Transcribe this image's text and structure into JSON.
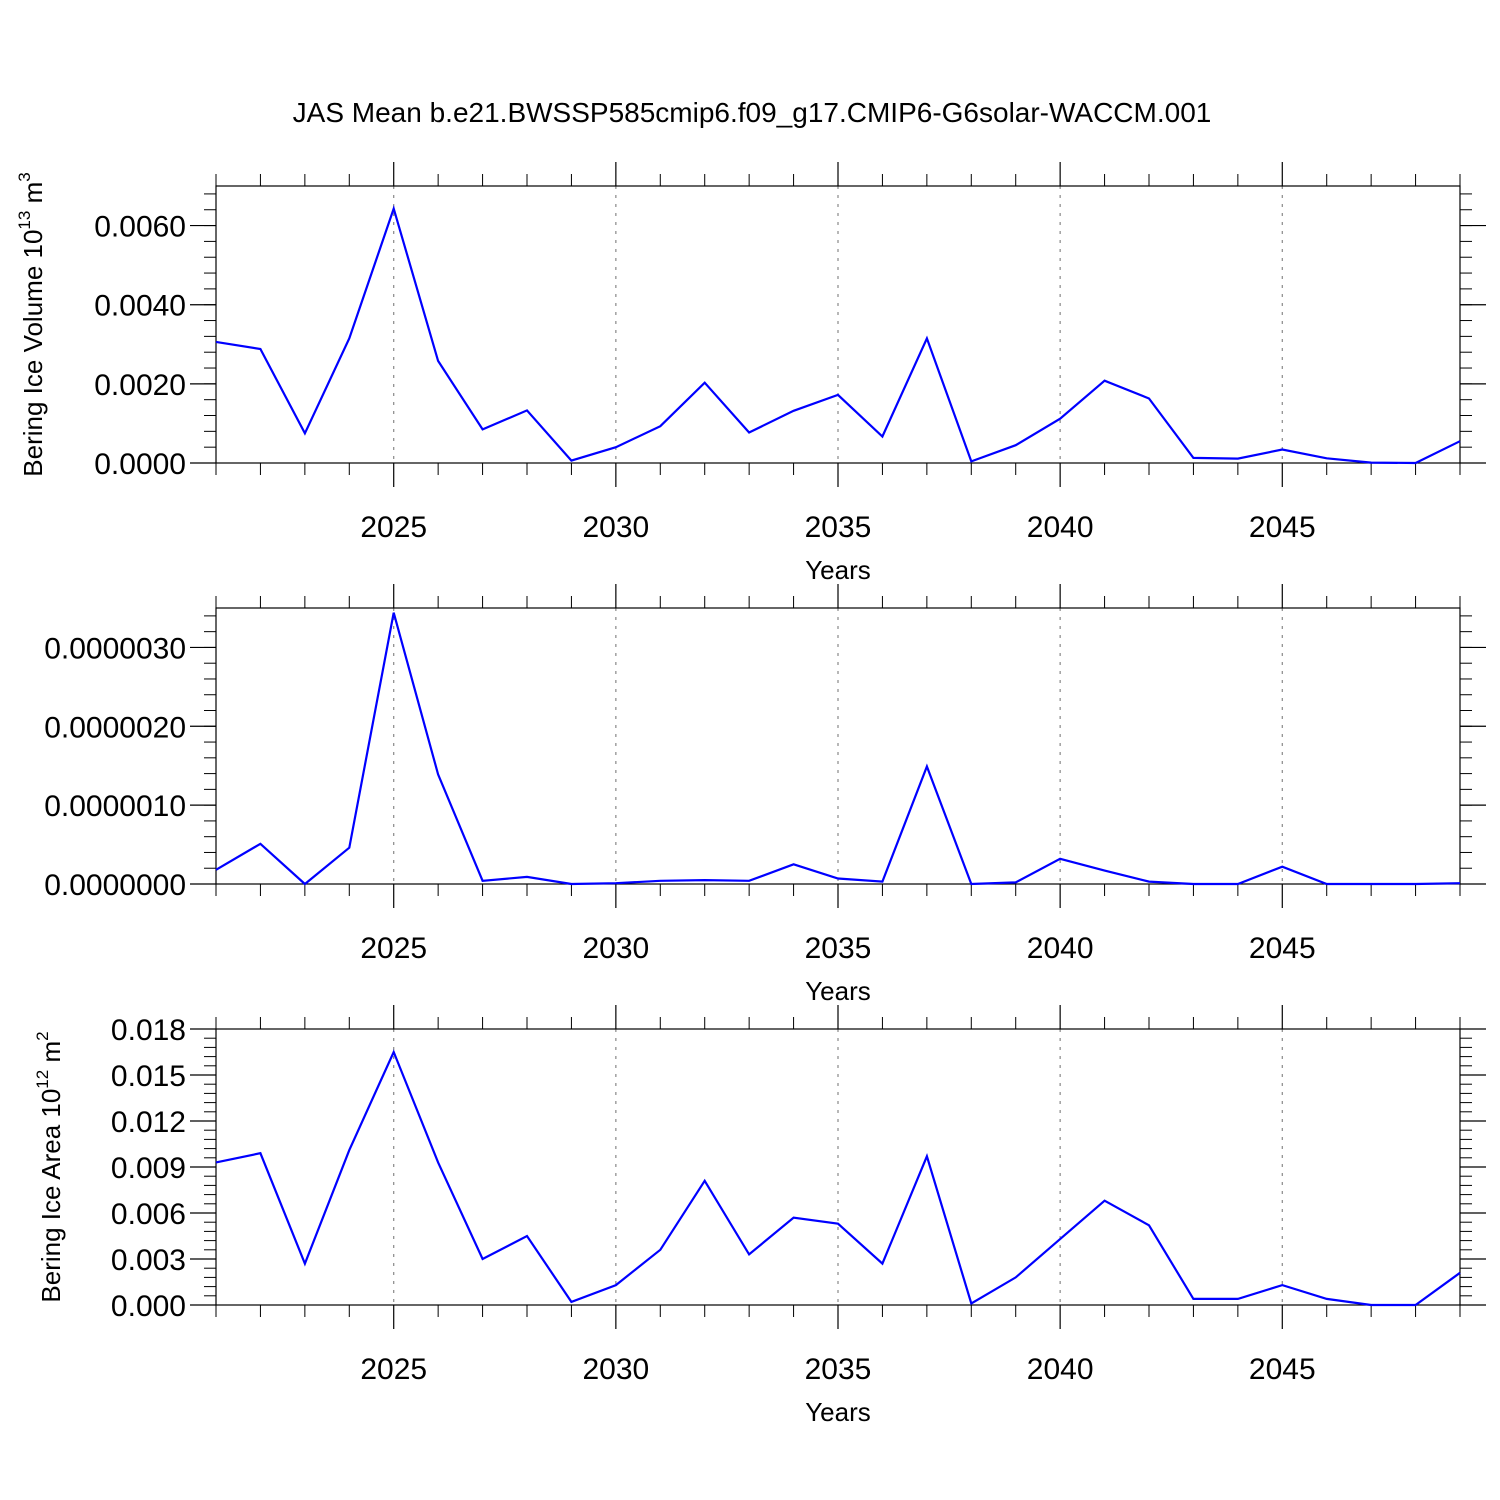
{
  "title": "JAS Mean b.e21.BWSSP585cmip6.f09_g17.CMIP6-G6solar-WACCM.001",
  "colors": {
    "line": "#0000ff"
  },
  "chart_data": [
    {
      "type": "line",
      "title": "JAS Mean b.e21.BWSSP585cmip6.f09_g17.CMIP6-G6solar-WACCM.001",
      "xlabel": "Years",
      "ylabel": "Bering Ice Volume 10",
      "ylabel_exp": "13",
      "ylabel_unit": " m",
      "ylabel_unit_exp": "3",
      "xlim": [
        2021,
        2049
      ],
      "ylim": [
        0.0,
        0.007
      ],
      "xticks": [
        2025,
        2030,
        2035,
        2040,
        2045
      ],
      "xtick_labels": [
        "2025",
        "2030",
        "2035",
        "2040",
        "2045"
      ],
      "yticks": [
        0.0,
        0.002,
        0.004,
        0.006
      ],
      "ytick_labels": [
        "0.0000",
        "0.0020",
        "0.0040",
        "0.0060"
      ],
      "y_minor_step": 0.0004,
      "grid": "x-dashed",
      "x": [
        2021,
        2022,
        2023,
        2024,
        2025,
        2026,
        2027,
        2028,
        2029,
        2030,
        2031,
        2032,
        2033,
        2034,
        2035,
        2036,
        2037,
        2038,
        2039,
        2040,
        2041,
        2042,
        2043,
        2044,
        2045,
        2046,
        2047,
        2048,
        2049
      ],
      "values": [
        0.00306,
        0.00288,
        0.00075,
        0.00315,
        0.00643,
        0.00258,
        0.00085,
        0.00133,
        6e-05,
        0.0004,
        0.00093,
        0.00203,
        0.00077,
        0.00132,
        0.00172,
        0.00067,
        0.00315,
        4e-05,
        0.00045,
        0.00112,
        0.00208,
        0.00163,
        0.00013,
        0.00011,
        0.00034,
        0.00012,
        1e-05,
        0.0,
        0.00055
      ]
    },
    {
      "type": "line",
      "title": "",
      "xlabel": "Years",
      "ylabel": "",
      "xlim": [
        2021,
        2049
      ],
      "ylim": [
        0.0,
        3.5e-06
      ],
      "xticks": [
        2025,
        2030,
        2035,
        2040,
        2045
      ],
      "xtick_labels": [
        "2025",
        "2030",
        "2035",
        "2040",
        "2045"
      ],
      "yticks": [
        0.0,
        1e-06,
        2e-06,
        3e-06
      ],
      "ytick_labels": [
        "0.0000000",
        "0.0000010",
        "0.0000020",
        "0.0000030"
      ],
      "y_minor_step": 2e-07,
      "grid": "x-dashed",
      "x": [
        2021,
        2022,
        2023,
        2024,
        2025,
        2026,
        2027,
        2028,
        2029,
        2030,
        2031,
        2032,
        2033,
        2034,
        2035,
        2036,
        2037,
        2038,
        2039,
        2040,
        2041,
        2042,
        2043,
        2044,
        2045,
        2046,
        2047,
        2048,
        2049
      ],
      "values": [
        1.8e-07,
        5.1e-07,
        0.0,
        4.6e-07,
        3.44e-06,
        1.39e-06,
        4e-08,
        9e-08,
        0.0,
        1e-08,
        4e-08,
        5e-08,
        4e-08,
        2.5e-07,
        7e-08,
        3e-08,
        1.49e-06,
        0.0,
        2e-08,
        3.2e-07,
        1.7e-07,
        3e-08,
        0.0,
        0.0,
        2.2e-07,
        0.0,
        0.0,
        0.0,
        1e-08
      ]
    },
    {
      "type": "line",
      "title": "",
      "xlabel": "Years",
      "ylabel": "Bering Ice Area 10",
      "ylabel_exp": "12",
      "ylabel_unit": " m",
      "ylabel_unit_exp": "2",
      "xlim": [
        2021,
        2049
      ],
      "ylim": [
        0.0,
        0.018
      ],
      "xticks": [
        2025,
        2030,
        2035,
        2040,
        2045
      ],
      "xtick_labels": [
        "2025",
        "2030",
        "2035",
        "2040",
        "2045"
      ],
      "yticks": [
        0.0,
        0.003,
        0.006,
        0.009,
        0.012,
        0.015,
        0.018
      ],
      "ytick_labels": [
        "0.000",
        "0.003",
        "0.006",
        "0.009",
        "0.012",
        "0.015",
        "0.018"
      ],
      "y_minor_step": 0.0006,
      "grid": "x-dashed",
      "x": [
        2021,
        2022,
        2023,
        2024,
        2025,
        2026,
        2027,
        2028,
        2029,
        2030,
        2031,
        2032,
        2033,
        2034,
        2035,
        2036,
        2037,
        2038,
        2039,
        2040,
        2041,
        2042,
        2043,
        2044,
        2045,
        2046,
        2047,
        2048,
        2049
      ],
      "values": [
        0.0093,
        0.0099,
        0.0027,
        0.0101,
        0.0165,
        0.0093,
        0.003,
        0.0045,
        0.0002,
        0.0013,
        0.0036,
        0.0081,
        0.0033,
        0.0057,
        0.0053,
        0.0027,
        0.0097,
        0.0001,
        0.0018,
        0.0043,
        0.0068,
        0.0052,
        0.0004,
        0.0004,
        0.0013,
        0.0004,
        0.0,
        0.0,
        0.0021
      ]
    }
  ]
}
